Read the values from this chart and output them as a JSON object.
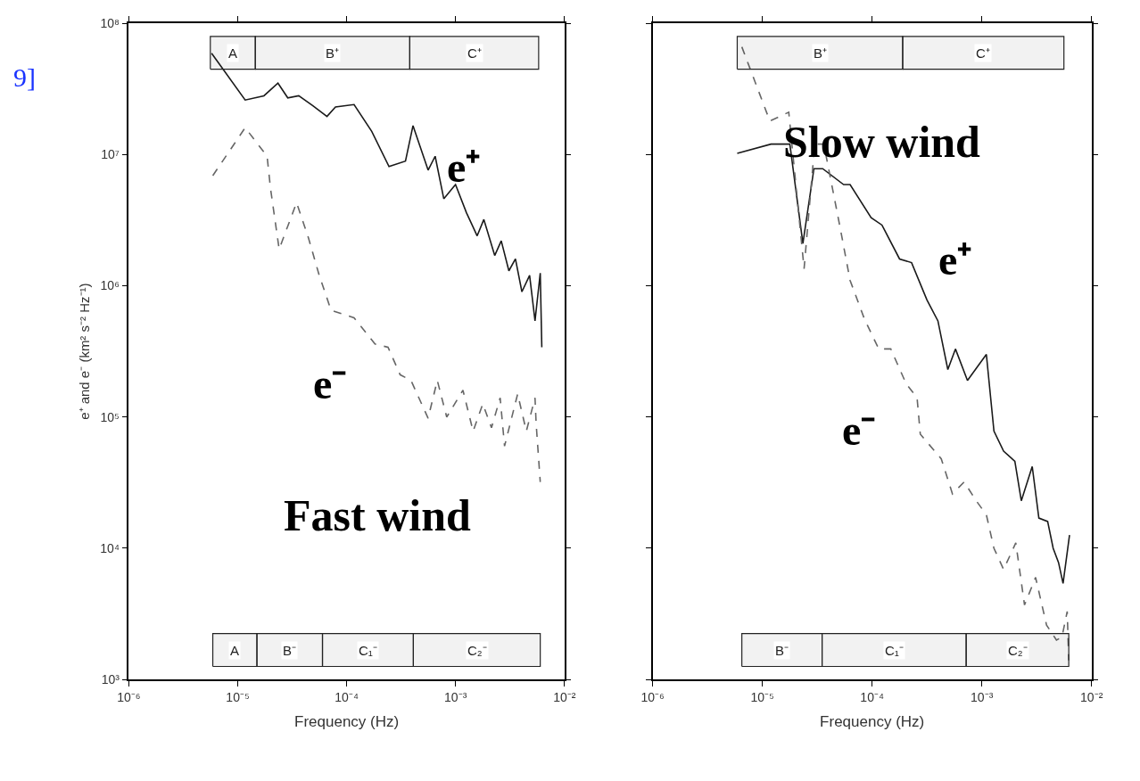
{
  "chart_data": [
    {
      "type": "line",
      "log": "xy",
      "xlabel": "Frequency (Hz)",
      "ylabel": "e⁺ and e⁻ (km² s⁻² Hz⁻¹)",
      "xlim": [
        1e-06,
        0.01
      ],
      "xticks": [
        {
          "value": 1e-06,
          "label": "10⁻⁶"
        },
        {
          "value": 1e-05,
          "label": "10⁻⁵"
        },
        {
          "value": 0.0001,
          "label": "10⁻⁴"
        },
        {
          "value": 0.001,
          "label": "10⁻³"
        },
        {
          "value": 0.01,
          "label": "10⁻²"
        }
      ],
      "ylim": [
        1000.0,
        100000000.0
      ],
      "yticks": [
        {
          "value": 1000.0,
          "label": "10³"
        },
        {
          "value": 10000.0,
          "label": "10⁴"
        },
        {
          "value": 100000.0,
          "label": "10⁵"
        },
        {
          "value": 1000000.0,
          "label": "10⁶"
        },
        {
          "value": 10000000.0,
          "label": "10⁷"
        },
        {
          "value": 100000000.0,
          "label": "10⁸"
        }
      ],
      "series": [
        {
          "color": "#1a1a1a",
          "line_style": "solid",
          "x": [
            5.75e-06,
            1.17e-05,
            1.74e-05,
            2.34e-05,
            2.88e-05,
            3.63e-05,
            4.9e-05,
            6.6e-05,
            7.9e-05,
            0.000117,
            0.00017,
            0.000245,
            0.000347,
            0.000407,
            0.00056,
            0.00065,
            0.00078,
            0.001,
            0.00126,
            0.00158,
            0.00182,
            0.00229,
            0.00263,
            0.00309,
            0.00355,
            0.00407,
            0.00479,
            0.00537,
            0.006,
            0.0062
          ],
          "values": [
            59000000.0,
            26000000.0,
            28000000.0,
            35000000.0,
            27000000.0,
            28000000.0,
            23500000.0,
            19500000.0,
            23000000.0,
            24000000.0,
            15000000.0,
            8100000.0,
            8900000.0,
            16600000.0,
            7600000.0,
            9700000.0,
            4600000.0,
            5900000.0,
            3600000.0,
            2400000.0,
            3200000.0,
            1700000.0,
            2200000.0,
            1300000.0,
            1600000.0,
            900000.0,
            1200000.0,
            540000.0,
            1250000.0,
            340000.0
          ]
        },
        {
          "color": "#666666",
          "line_style": "dashed",
          "x": [
            5.9e-06,
            1.17e-05,
            1.86e-05,
            2e-05,
            2.4e-05,
            3.47e-05,
            4.47e-05,
            5.6e-05,
            7.2e-05,
            0.000117,
            0.000182,
            0.00024,
            0.00031,
            0.00039,
            0.00056,
            0.00068,
            0.00083,
            0.00117,
            0.00145,
            0.00178,
            0.00214,
            0.00257,
            0.00282,
            0.00372,
            0.00447,
            0.00537,
            0.0055,
            0.006
          ],
          "values": [
            6900000.0,
            16000000.0,
            9700000.0,
            5500000.0,
            1900000.0,
            4300000.0,
            2300000.0,
            1200000.0,
            650000.0,
            570000.0,
            360000.0,
            340000.0,
            210000.0,
            190000.0,
            98000.0,
            190000.0,
            100000.0,
            160000.0,
            78000.0,
            126000.0,
            83000.0,
            140000.0,
            60000.0,
            150000.0,
            78000.0,
            140000.0,
            89000.0,
            32000.0
          ]
        }
      ],
      "bands": [
        {
          "axis": "x",
          "from": 5.6e-06,
          "to": 1.45e-05,
          "label": "A"
        },
        {
          "axis": "x",
          "from": 1.45e-05,
          "to": 0.00038,
          "label": "B⁺"
        },
        {
          "axis": "x",
          "from": 0.00038,
          "to": 0.0058,
          "label": "C⁺"
        },
        {
          "axis": "x",
          "from": 5.9e-06,
          "to": 1.5e-05,
          "label": "A"
        },
        {
          "axis": "x",
          "from": 1.5e-05,
          "to": 6e-05,
          "label": "B⁻"
        },
        {
          "axis": "x",
          "from": 6e-05,
          "to": 0.00041,
          "label": "C₁⁻"
        },
        {
          "axis": "x",
          "from": 0.00041,
          "to": 0.006,
          "label": "C₂⁻"
        }
      ],
      "annotations": [
        "9]",
        "e⁺",
        "e⁻",
        "Fast wind"
      ]
    },
    {
      "type": "line",
      "log": "xy",
      "xlabel": "Frequency (Hz)",
      "tick_labels": "x",
      "xlim": [
        1e-06,
        0.01
      ],
      "xticks": [
        {
          "value": 1e-06,
          "label": "10⁻⁶"
        },
        {
          "value": 1e-05,
          "label": "10⁻⁵"
        },
        {
          "value": 0.0001,
          "label": "10⁻⁴"
        },
        {
          "value": 0.001,
          "label": "10⁻³"
        },
        {
          "value": 0.01,
          "label": "10⁻²"
        }
      ],
      "ylim": [
        1000.0,
        100000000.0
      ],
      "yticks": [
        {
          "value": 1000.0,
          "label": null
        },
        {
          "value": 10000.0,
          "label": null
        },
        {
          "value": 100000.0,
          "label": null
        },
        {
          "value": 1000000.0,
          "label": null
        },
        {
          "value": 10000000.0,
          "label": null
        },
        {
          "value": 100000000.0,
          "label": null
        }
      ],
      "series": [
        {
          "color": "#1a1a1a",
          "line_style": "solid",
          "x": [
            5.9e-06,
            1.2e-05,
            1.78e-05,
            2.34e-05,
            2.95e-05,
            3.55e-05,
            5.5e-05,
            6.3e-05,
            9.8e-05,
            0.000123,
            0.000178,
            0.000229,
            0.000316,
            0.000398,
            0.00049,
            0.000575,
            0.00074,
            0.0011,
            0.00129,
            0.00158,
            0.002,
            0.00229,
            0.00288,
            0.00331,
            0.00398,
            0.00447,
            0.005,
            0.0055,
            0.006,
            0.0063
          ],
          "values": [
            10200000.0,
            12000000.0,
            12000000.0,
            2100000.0,
            7800000.0,
            7800000.0,
            5900000.0,
            5900000.0,
            3300000.0,
            2900000.0,
            1600000.0,
            1500000.0,
            780000.0,
            540000.0,
            230000.0,
            330000.0,
            190000.0,
            300000.0,
            78000.0,
            55000.0,
            46000.0,
            23000.0,
            42000.0,
            17000.0,
            16000.0,
            10000.0,
            7800.0,
            5400.0,
            9300.0,
            12600.0
          ]
        },
        {
          "color": "#666666",
          "line_style": "dashed",
          "x": [
            6.5e-06,
            1.17e-05,
            1.74e-05,
            2.4e-05,
            3e-05,
            3.63e-05,
            5.1e-05,
            6.3e-05,
            8.5e-05,
            0.000115,
            0.000148,
            0.000204,
            0.000257,
            0.000275,
            0.000427,
            0.00054,
            0.00069,
            0.00089,
            0.0011,
            0.00129,
            0.00158,
            0.00204,
            0.00245,
            0.00309,
            0.00389,
            0.00479,
            0.00537,
            0.006,
            0.0062
          ],
          "values": [
            66000000.0,
            18000000.0,
            21000000.0,
            1350000.0,
            12000000.0,
            12000000.0,
            2800000.0,
            1100000.0,
            560000.0,
            330000.0,
            330000.0,
            180000.0,
            140000.0,
            74000.0,
            48000.0,
            26000.0,
            32000.0,
            23000.0,
            18000.0,
            10000.0,
            6900.0,
            11000.0,
            3700.0,
            6000.0,
            2600.0,
            2000.0,
            2100.0,
            3300.0,
            1400.0
          ]
        }
      ],
      "bands": [
        {
          "axis": "x",
          "from": 5.9e-06,
          "to": 0.00019,
          "label": "B⁺"
        },
        {
          "axis": "x",
          "from": 0.00019,
          "to": 0.0056,
          "label": "C⁺"
        },
        {
          "axis": "x",
          "from": 6.5e-06,
          "to": 3.5e-05,
          "label": "B⁻"
        },
        {
          "axis": "x",
          "from": 3.5e-05,
          "to": 0.00072,
          "label": "C₁⁻"
        },
        {
          "axis": "x",
          "from": 0.00072,
          "to": 0.0062,
          "label": "C₂⁻"
        }
      ],
      "annotations": [
        "Slow wind",
        "e⁺",
        "e⁻"
      ]
    }
  ]
}
